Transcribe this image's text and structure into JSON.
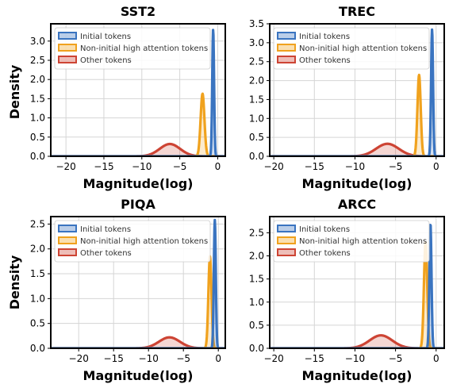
{
  "figure": {
    "ylabel_left": "Density"
  },
  "legend_labels": [
    "Initial tokens",
    "Non-initial high attention tokens",
    "Other tokens"
  ],
  "colors": {
    "initial": "#3a74c0",
    "noninitial": "#f0a21e",
    "other": "#cd4434"
  },
  "chart_data": [
    {
      "type": "area",
      "title": "SST2",
      "xlabel": "Magnitude(log)",
      "ylabel": "Density",
      "xlim": [
        -22,
        1
      ],
      "ylim": [
        0,
        3.45
      ],
      "xticks": [
        -20,
        -15,
        -10,
        -5,
        0
      ],
      "yticks": [
        0.0,
        0.5,
        1.0,
        1.5,
        2.0,
        2.5,
        3.0
      ],
      "ytick_labels": [
        "0.0",
        "0.5",
        "1.0",
        "1.5",
        "2.0",
        "2.5",
        "3.0"
      ],
      "grid": true,
      "legend": "top-left",
      "series": [
        {
          "name": "Initial tokens",
          "key": "initial",
          "mean": -0.6,
          "sd": 0.12,
          "peak": 3.3
        },
        {
          "name": "Non-initial high attention tokens",
          "key": "noninitial",
          "mean": -2.0,
          "sd": 0.25,
          "peak": 1.63
        },
        {
          "name": "Other tokens",
          "key": "other",
          "mean": -6.3,
          "sd": 1.35,
          "peak": 0.32
        }
      ]
    },
    {
      "type": "area",
      "title": "TREC",
      "xlabel": "Magnitude(log)",
      "ylabel": "",
      "xlim": [
        -20.5,
        1
      ],
      "ylim": [
        0,
        3.5
      ],
      "xticks": [
        -20,
        -15,
        -10,
        -5,
        0
      ],
      "yticks": [
        0.0,
        0.5,
        1.0,
        1.5,
        2.0,
        2.5,
        3.0,
        3.5
      ],
      "ytick_labels": [
        "0.0",
        "0.5",
        "1.0",
        "1.5",
        "2.0",
        "2.5",
        "3.0",
        "3.5"
      ],
      "grid": true,
      "legend": "top-left",
      "series": [
        {
          "name": "Initial tokens",
          "key": "initial",
          "mean": -0.5,
          "sd": 0.12,
          "peak": 3.35
        },
        {
          "name": "Non-initial high attention tokens",
          "key": "noninitial",
          "mean": -2.1,
          "sd": 0.2,
          "peak": 2.15
        },
        {
          "name": "Other tokens",
          "key": "other",
          "mean": -6.0,
          "sd": 1.4,
          "peak": 0.33
        }
      ]
    },
    {
      "type": "area",
      "title": "PIQA",
      "xlabel": "Magnitude(log)",
      "ylabel": "Density",
      "xlim": [
        -24,
        1
      ],
      "ylim": [
        0,
        2.65
      ],
      "xticks": [
        -20,
        -15,
        -10,
        -5,
        0
      ],
      "yticks": [
        0.0,
        0.5,
        1.0,
        1.5,
        2.0,
        2.5
      ],
      "ytick_labels": [
        "0.0",
        "0.5",
        "1.0",
        "1.5",
        "2.0",
        "2.5"
      ],
      "grid": true,
      "legend": "top-left",
      "series": [
        {
          "name": "Initial tokens",
          "key": "initial",
          "mean": -0.5,
          "sd": 0.14,
          "peak": 2.58
        },
        {
          "name": "Non-initial high attention tokens",
          "key": "noninitial",
          "mean": -1.2,
          "sd": 0.22,
          "peak": 1.85
        },
        {
          "name": "Other tokens",
          "key": "other",
          "mean": -7.0,
          "sd": 1.5,
          "peak": 0.22
        }
      ]
    },
    {
      "type": "area",
      "title": "ARCC",
      "xlabel": "Magnitude(log)",
      "ylabel": "",
      "xlim": [
        -20.5,
        1
      ],
      "ylim": [
        0,
        2.85
      ],
      "xticks": [
        -20,
        -15,
        -10,
        -5,
        0
      ],
      "yticks": [
        0.0,
        0.5,
        1.0,
        1.5,
        2.0,
        2.5
      ],
      "ytick_labels": [
        "0.0",
        "0.5",
        "1.0",
        "1.5",
        "2.0",
        "2.5"
      ],
      "grid": true,
      "legend": "top-left",
      "series": [
        {
          "name": "Initial tokens",
          "key": "initial",
          "mean": -0.7,
          "sd": 0.13,
          "peak": 2.7
        },
        {
          "name": "Non-initial high attention tokens",
          "key": "noninitial",
          "mean": -1.3,
          "sd": 0.2,
          "peak": 2.3
        },
        {
          "name": "Other tokens",
          "key": "other",
          "mean": -6.8,
          "sd": 1.4,
          "peak": 0.28
        }
      ]
    }
  ]
}
